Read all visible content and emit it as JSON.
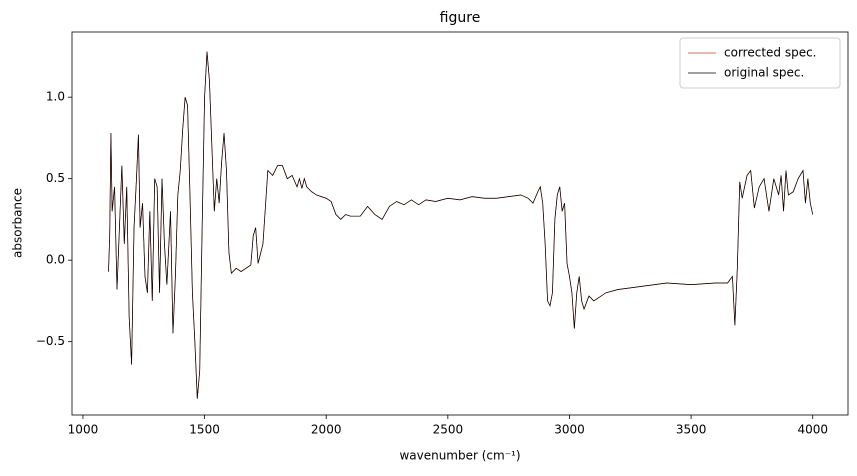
{
  "chart_data": {
    "type": "line",
    "title": "figure",
    "xlabel": "wavenumber (cm⁻¹)",
    "ylabel": "absorbance",
    "x": [
      1105,
      1110,
      1115,
      1120,
      1130,
      1140,
      1150,
      1160,
      1170,
      1180,
      1190,
      1200,
      1210,
      1220,
      1228,
      1235,
      1245,
      1255,
      1265,
      1275,
      1285,
      1295,
      1305,
      1315,
      1325,
      1335,
      1345,
      1360,
      1370,
      1380,
      1390,
      1400,
      1410,
      1420,
      1430,
      1440,
      1450,
      1460,
      1470,
      1480,
      1490,
      1500,
      1510,
      1520,
      1530,
      1540,
      1550,
      1560,
      1570,
      1580,
      1590,
      1600,
      1610,
      1630,
      1650,
      1670,
      1690,
      1700,
      1710,
      1720,
      1740,
      1760,
      1780,
      1800,
      1820,
      1840,
      1860,
      1880,
      1890,
      1900,
      1910,
      1920,
      1940,
      1960,
      1980,
      2000,
      2020,
      2040,
      2060,
      2080,
      2100,
      2140,
      2170,
      2200,
      2230,
      2260,
      2290,
      2320,
      2350,
      2380,
      2410,
      2450,
      2500,
      2550,
      2600,
      2650,
      2700,
      2750,
      2800,
      2830,
      2850,
      2870,
      2880,
      2890,
      2900,
      2910,
      2920,
      2930,
      2940,
      2950,
      2960,
      2970,
      2980,
      2990,
      3000,
      3010,
      3020,
      3030,
      3040,
      3050,
      3060,
      3080,
      3100,
      3150,
      3200,
      3300,
      3400,
      3500,
      3600,
      3650,
      3670,
      3680,
      3690,
      3700,
      3710,
      3730,
      3745,
      3760,
      3780,
      3800,
      3820,
      3840,
      3860,
      3870,
      3880,
      3890,
      3900,
      3920,
      3940,
      3960,
      3970,
      3980,
      3990,
      4000
    ],
    "series": [
      {
        "name": "corrected spec.",
        "color": "#c8402f",
        "width": 0.7,
        "values": [
          -0.07,
          0.15,
          0.78,
          0.3,
          0.45,
          -0.18,
          0.2,
          0.58,
          0.1,
          0.45,
          -0.35,
          -0.64,
          0.2,
          0.5,
          0.77,
          0.2,
          0.35,
          -0.1,
          -0.2,
          0.3,
          -0.25,
          0.5,
          0.45,
          -0.2,
          0.5,
          0.1,
          -0.15,
          0.3,
          -0.45,
          -0.1,
          0.4,
          0.55,
          0.8,
          1.0,
          0.95,
          0.4,
          -0.2,
          -0.5,
          -0.85,
          -0.68,
          0.2,
          1.0,
          1.28,
          1.1,
          0.7,
          0.3,
          0.5,
          0.35,
          0.6,
          0.78,
          0.55,
          0.05,
          -0.08,
          -0.05,
          -0.07,
          -0.05,
          -0.03,
          0.15,
          0.2,
          -0.02,
          0.1,
          0.55,
          0.52,
          0.58,
          0.58,
          0.5,
          0.52,
          0.45,
          0.5,
          0.44,
          0.5,
          0.45,
          0.42,
          0.4,
          0.39,
          0.38,
          0.36,
          0.28,
          0.25,
          0.28,
          0.27,
          0.27,
          0.33,
          0.28,
          0.25,
          0.33,
          0.36,
          0.34,
          0.37,
          0.34,
          0.37,
          0.36,
          0.38,
          0.37,
          0.39,
          0.38,
          0.38,
          0.39,
          0.4,
          0.38,
          0.35,
          0.42,
          0.45,
          0.35,
          0.1,
          -0.25,
          -0.28,
          -0.2,
          0.25,
          0.4,
          0.45,
          0.3,
          0.35,
          -0.02,
          -0.1,
          -0.2,
          -0.42,
          -0.2,
          -0.1,
          -0.25,
          -0.3,
          -0.22,
          -0.25,
          -0.2,
          -0.18,
          -0.16,
          -0.14,
          -0.15,
          -0.14,
          -0.14,
          -0.1,
          -0.4,
          -0.05,
          0.48,
          0.38,
          0.52,
          0.55,
          0.32,
          0.45,
          0.5,
          0.3,
          0.5,
          0.4,
          0.52,
          0.3,
          0.55,
          0.4,
          0.42,
          0.5,
          0.55,
          0.35,
          0.5,
          0.35,
          0.28
        ]
      },
      {
        "name": "original spec.",
        "color": "#000000",
        "width": 0.7,
        "values": [
          -0.07,
          0.15,
          0.78,
          0.3,
          0.45,
          -0.18,
          0.2,
          0.58,
          0.1,
          0.45,
          -0.35,
          -0.64,
          0.2,
          0.5,
          0.77,
          0.2,
          0.35,
          -0.1,
          -0.2,
          0.3,
          -0.25,
          0.5,
          0.45,
          -0.2,
          0.5,
          0.1,
          -0.15,
          0.3,
          -0.45,
          -0.1,
          0.4,
          0.55,
          0.8,
          1.0,
          0.95,
          0.4,
          -0.2,
          -0.5,
          -0.85,
          -0.68,
          0.2,
          1.0,
          1.28,
          1.1,
          0.7,
          0.3,
          0.5,
          0.35,
          0.6,
          0.78,
          0.55,
          0.05,
          -0.08,
          -0.05,
          -0.07,
          -0.05,
          -0.03,
          0.15,
          0.2,
          -0.02,
          0.1,
          0.55,
          0.52,
          0.58,
          0.58,
          0.5,
          0.52,
          0.45,
          0.5,
          0.44,
          0.5,
          0.45,
          0.42,
          0.4,
          0.39,
          0.38,
          0.36,
          0.28,
          0.25,
          0.28,
          0.27,
          0.27,
          0.33,
          0.28,
          0.25,
          0.33,
          0.36,
          0.34,
          0.37,
          0.34,
          0.37,
          0.36,
          0.38,
          0.37,
          0.39,
          0.38,
          0.38,
          0.39,
          0.4,
          0.38,
          0.35,
          0.42,
          0.45,
          0.35,
          0.1,
          -0.25,
          -0.28,
          -0.2,
          0.25,
          0.4,
          0.45,
          0.3,
          0.35,
          -0.02,
          -0.1,
          -0.2,
          -0.42,
          -0.2,
          -0.1,
          -0.25,
          -0.3,
          -0.22,
          -0.25,
          -0.2,
          -0.18,
          -0.16,
          -0.14,
          -0.15,
          -0.14,
          -0.14,
          -0.1,
          -0.4,
          -0.05,
          0.48,
          0.38,
          0.52,
          0.55,
          0.32,
          0.45,
          0.5,
          0.3,
          0.5,
          0.4,
          0.52,
          0.3,
          0.55,
          0.4,
          0.42,
          0.5,
          0.55,
          0.35,
          0.5,
          0.35,
          0.28
        ]
      }
    ],
    "xlim": [
      955,
      4145
    ],
    "xticks": [
      1000,
      1500,
      2000,
      2500,
      3000,
      3500,
      4000
    ],
    "ylim": [
      -0.95,
      1.4
    ],
    "yticks": [
      {
        "value": -0.5,
        "label": "−0.5"
      },
      {
        "value": 0,
        "label": "0.0"
      },
      0.5,
      {
        "value": 1,
        "label": "1.0"
      }
    ],
    "legend": "upper right"
  }
}
